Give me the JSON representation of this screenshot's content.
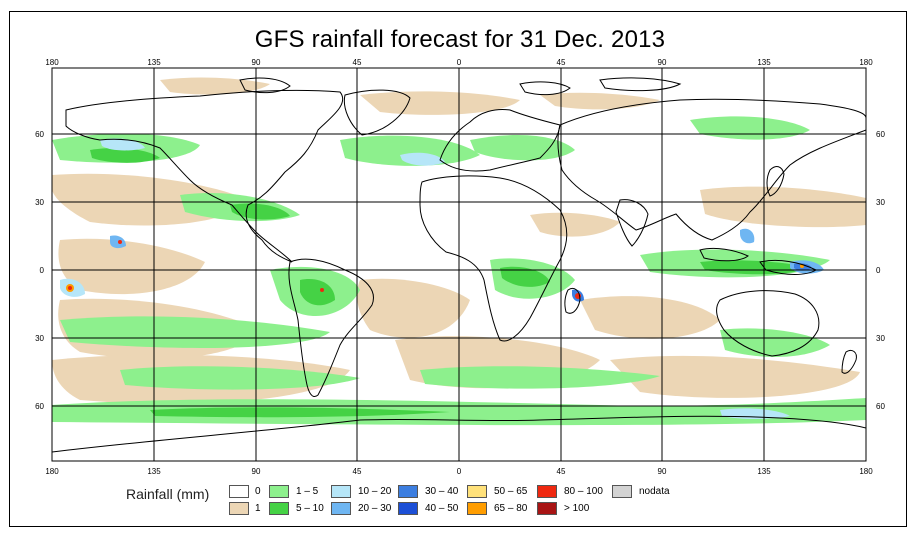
{
  "title": "GFS rainfall forecast for 31 Dec. 2013",
  "axes": {
    "top_ticks": [
      "180",
      "135",
      "90",
      "45",
      "0",
      "45",
      "90",
      "135",
      "180"
    ],
    "bottom_ticks": [
      "180",
      "135",
      "90",
      "45",
      "0",
      "45",
      "90",
      "135",
      "180"
    ],
    "left_ticks": [
      "60",
      "30",
      "0",
      "30",
      "60"
    ],
    "right_ticks": [
      "60",
      "30",
      "0",
      "30",
      "60"
    ]
  },
  "legend": {
    "title": "Rainfall (mm)",
    "items": [
      {
        "label": "0",
        "color": "#ffffff"
      },
      {
        "label": "1",
        "color": "#ecd6b5"
      },
      {
        "label": "1 – 5",
        "color": "#8df08d"
      },
      {
        "label": "5 – 10",
        "color": "#45d245"
      },
      {
        "label": "10 – 20",
        "color": "#b6e6f8"
      },
      {
        "label": "20 – 30",
        "color": "#6fb6f2"
      },
      {
        "label": "30 – 40",
        "color": "#3c7ee0"
      },
      {
        "label": "40 – 50",
        "color": "#1c4fd6"
      },
      {
        "label": "50 – 65",
        "color": "#ffe17a"
      },
      {
        "label": "65 – 80",
        "color": "#ff9d00"
      },
      {
        "label": "80 – 100",
        "color": "#ef2810"
      },
      {
        "label": "> 100",
        "color": "#a81414"
      },
      {
        "label": "nodata",
        "color": "#d3d3d3"
      }
    ]
  }
}
